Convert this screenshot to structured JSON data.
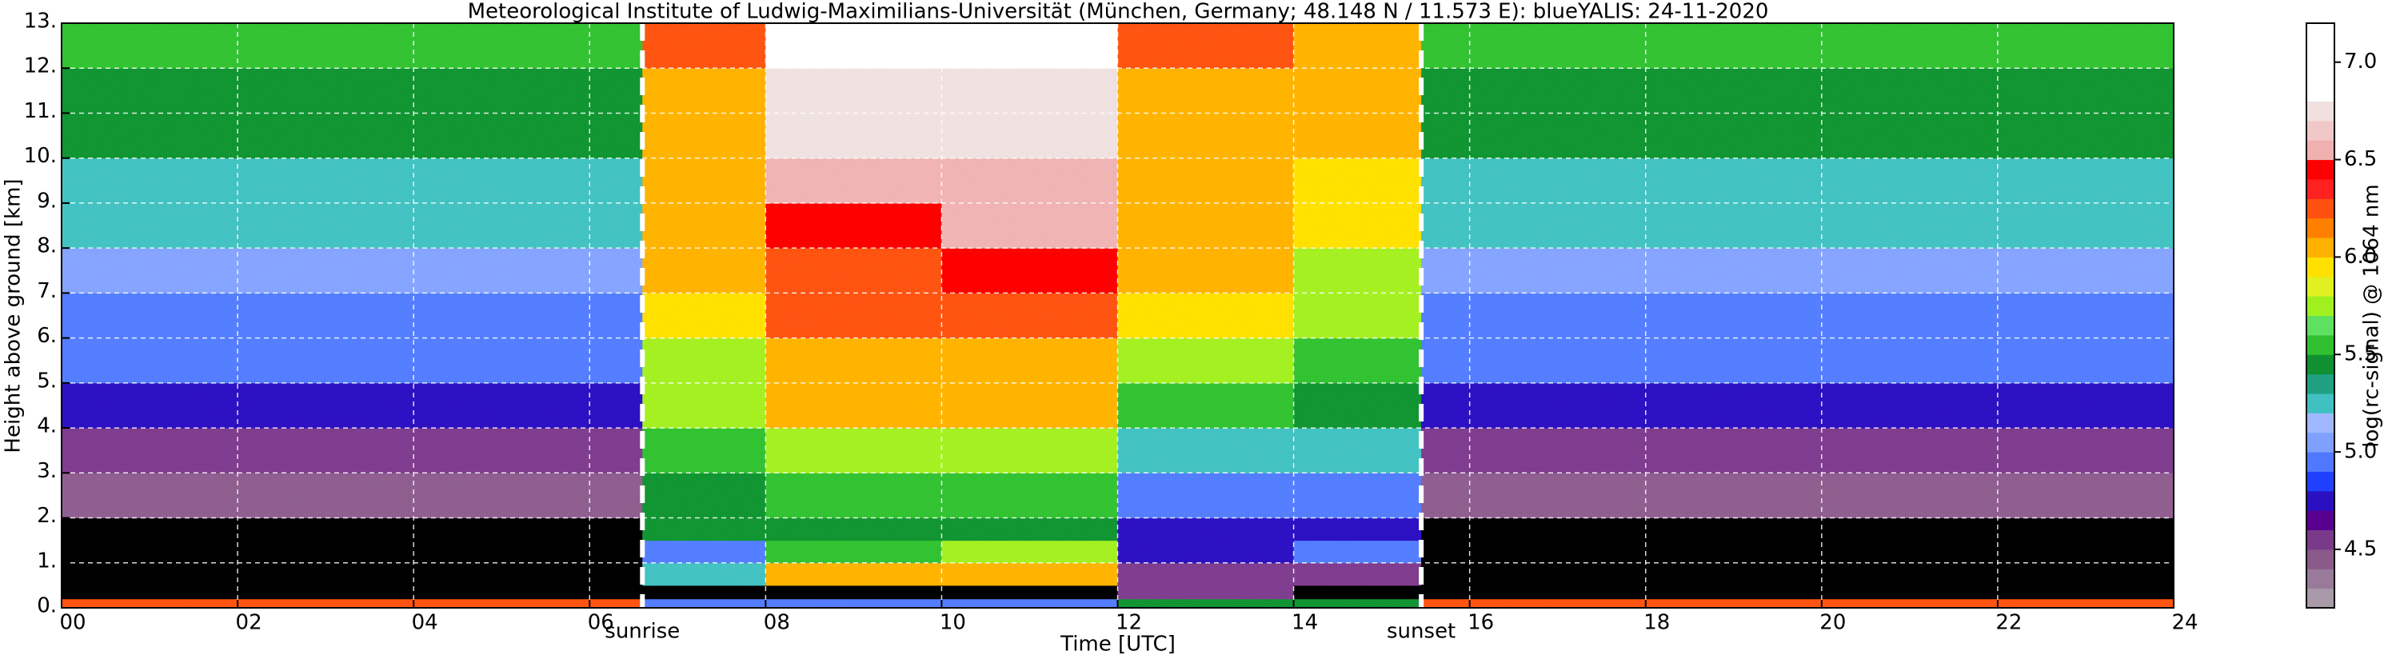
{
  "chart_data": {
    "type": "heatmap",
    "title": "Meteorological Institute of Ludwig-Maximilians-Universität (München, Germany; 48.148 N / 11.573 E):    blueYALIS: 24-11-2020",
    "xlabel": "Time [UTC]",
    "ylabel": "Height above ground [km]",
    "colorbar_label": "log(rc-signal) @ 1064 nm",
    "xlim": [
      0,
      24
    ],
    "ylim": [
      0,
      13
    ],
    "xticks": [
      {
        "value": 0,
        "label": "00"
      },
      {
        "value": 2,
        "label": "02"
      },
      {
        "value": 4,
        "label": "04"
      },
      {
        "value": 6,
        "label": "06"
      },
      {
        "value": 8,
        "label": "08"
      },
      {
        "value": 10,
        "label": "10"
      },
      {
        "value": 12,
        "label": "12"
      },
      {
        "value": 14,
        "label": "14"
      },
      {
        "value": 16,
        "label": "16"
      },
      {
        "value": 18,
        "label": "18"
      },
      {
        "value": 20,
        "label": "20"
      },
      {
        "value": 22,
        "label": "22"
      },
      {
        "value": 24,
        "label": "24"
      }
    ],
    "yticks": [
      {
        "value": 0,
        "label": "0."
      },
      {
        "value": 1,
        "label": "1."
      },
      {
        "value": 2,
        "label": "2."
      },
      {
        "value": 3,
        "label": "3."
      },
      {
        "value": 4,
        "label": "4."
      },
      {
        "value": 5,
        "label": "5."
      },
      {
        "value": 6,
        "label": "6."
      },
      {
        "value": 7,
        "label": "7."
      },
      {
        "value": 8,
        "label": "8."
      },
      {
        "value": 9,
        "label": "9."
      },
      {
        "value": 10,
        "label": "10."
      },
      {
        "value": 11,
        "label": "11."
      },
      {
        "value": 12,
        "label": "12."
      },
      {
        "value": 13,
        "label": "13."
      }
    ],
    "grid": true,
    "x_edges": [
      0,
      2,
      4,
      6.6,
      8,
      10,
      12,
      14,
      15.45,
      18,
      20,
      22,
      24
    ],
    "y_edges": [
      0,
      0.2,
      0.5,
      1,
      1.5,
      2,
      3,
      4,
      5,
      6,
      7,
      8,
      9,
      10,
      11,
      12,
      13
    ],
    "z": [
      [
        6.2,
        4.0,
        4.0,
        4.0,
        4.0,
        4.4,
        4.6,
        4.8,
        4.9,
        5.0,
        5.1,
        5.2,
        5.3,
        5.4,
        5.5,
        5.6
      ],
      [
        6.2,
        4.0,
        4.0,
        4.0,
        4.0,
        4.4,
        4.6,
        4.8,
        4.9,
        5.0,
        5.1,
        5.2,
        5.3,
        5.4,
        5.5,
        5.6
      ],
      [
        6.2,
        4.0,
        4.0,
        4.0,
        4.0,
        4.4,
        4.6,
        4.8,
        4.9,
        5.0,
        5.1,
        5.2,
        5.3,
        5.4,
        5.5,
        5.6
      ],
      [
        5.0,
        4.0,
        5.3,
        4.9,
        5.4,
        5.5,
        5.6,
        5.7,
        5.8,
        5.9,
        6.0,
        6.0,
        6.1,
        6.1,
        6.1,
        6.2
      ],
      [
        5.0,
        4.0,
        6.1,
        5.6,
        5.5,
        5.6,
        5.8,
        6.0,
        6.1,
        6.2,
        6.3,
        6.4,
        6.5,
        6.7,
        6.8,
        6.9
      ],
      [
        5.0,
        4.0,
        6.1,
        5.7,
        5.5,
        5.6,
        5.8,
        6.0,
        6.1,
        6.2,
        6.4,
        6.5,
        6.6,
        6.7,
        6.8,
        6.9
      ],
      [
        5.4,
        4.6,
        4.6,
        4.8,
        4.7,
        5.0,
        5.3,
        5.6,
        5.8,
        5.9,
        6.0,
        6.0,
        6.1,
        6.1,
        6.1,
        6.2
      ],
      [
        5.4,
        4.0,
        4.6,
        4.9,
        4.8,
        5.0,
        5.2,
        5.4,
        5.6,
        5.7,
        5.8,
        5.9,
        5.9,
        6.0,
        6.0,
        6.1
      ],
      [
        6.2,
        4.0,
        4.0,
        4.0,
        4.0,
        4.4,
        4.6,
        4.8,
        4.9,
        5.0,
        5.1,
        5.2,
        5.3,
        5.4,
        5.5,
        5.6
      ],
      [
        6.2,
        4.0,
        4.0,
        4.0,
        4.0,
        4.4,
        4.6,
        4.8,
        4.9,
        5.0,
        5.1,
        5.2,
        5.3,
        5.4,
        5.5,
        5.6
      ],
      [
        6.2,
        4.0,
        4.0,
        4.0,
        4.0,
        4.4,
        4.6,
        4.8,
        4.9,
        5.0,
        5.1,
        5.2,
        5.3,
        5.4,
        5.5,
        5.6
      ],
      [
        6.2,
        4.0,
        4.0,
        4.0,
        4.0,
        4.4,
        4.6,
        4.8,
        4.9,
        5.0,
        5.1,
        5.2,
        5.3,
        5.4,
        5.5,
        5.6
      ]
    ],
    "clim": [
      4.2,
      7.2
    ],
    "under_color": "#000000",
    "colorscale": [
      "#a89aa8",
      "#9a7a9a",
      "#8a5a8a",
      "#7a3a8a",
      "#5a0090",
      "#2a10c0",
      "#2040ff",
      "#5078ff",
      "#80a0ff",
      "#a0b8ff",
      "#40c0c0",
      "#20a080",
      "#109030",
      "#30c030",
      "#60e060",
      "#a0f020",
      "#e0f020",
      "#ffe000",
      "#ffb000",
      "#ff8000",
      "#ff5010",
      "#ff2020",
      "#ff0000",
      "#f0b0b0",
      "#f0c8c8",
      "#f0e0e0",
      "#ffffff",
      "#ffffff",
      "#ffffff",
      "#ffffff"
    ],
    "cticks": [
      4.5,
      {
        "value": 5,
        "label": "5.0"
      },
      5.5,
      {
        "value": 6,
        "label": "6.0"
      },
      6.5,
      {
        "value": 7,
        "label": "7.0"
      }
    ],
    "annotations": [
      {
        "text": "sunrise",
        "x": 6.6
      },
      {
        "text": "sunset",
        "x": 15.45
      }
    ]
  }
}
